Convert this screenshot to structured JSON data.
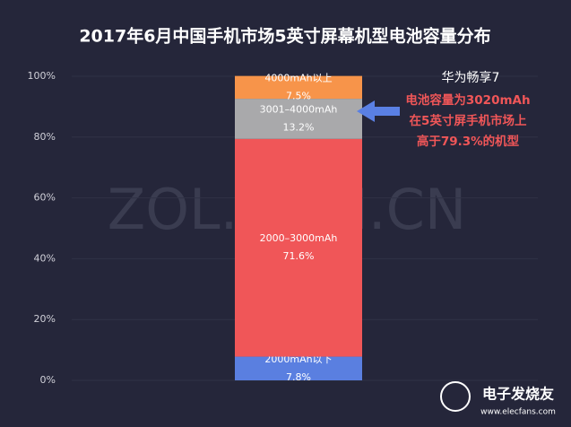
{
  "chart_data": {
    "type": "stacked-bar",
    "title": "2017年6月中国手机市场5英寸屏幕机型电池容量分布",
    "categories": [
      null
    ],
    "series": [
      {
        "name": "2000mAh以下",
        "color": "#5a7fe0",
        "values": [
          7.8
        ],
        "value_labels": [
          "7.8%"
        ]
      },
      {
        "name": "2000–3000mAh",
        "color": "#f05658",
        "values": [
          71.6
        ],
        "value_labels": [
          "71.6%"
        ]
      },
      {
        "name": "3001–4000mAh",
        "color": "#a9a9ab",
        "values": [
          13.2
        ],
        "value_labels": [
          "13.2%"
        ]
      },
      {
        "name": "4000mAh以上",
        "color": "#f7944a",
        "values": [
          7.5
        ],
        "value_labels": [
          "7.5%"
        ]
      }
    ],
    "ylim": [
      0,
      100
    ],
    "yticks": [
      {
        "value": 0,
        "label": "0%"
      },
      {
        "value": 20,
        "label": "20%"
      },
      {
        "value": 40,
        "label": "40%"
      },
      {
        "value": 60,
        "label": "60%"
      },
      {
        "value": 80,
        "label": "80%"
      },
      {
        "value": 100,
        "label": "100%"
      }
    ],
    "grid": true,
    "annotation": {
      "title": "华为畅享7",
      "lines": [
        "电池容量为3020mAh",
        "在5英寸屏手机市场上",
        "高于79.3%的机型"
      ]
    },
    "watermark": "ZOL.COM.CN",
    "logo": {
      "name": "电子发烧友",
      "url": "www.elecfans.com"
    }
  }
}
